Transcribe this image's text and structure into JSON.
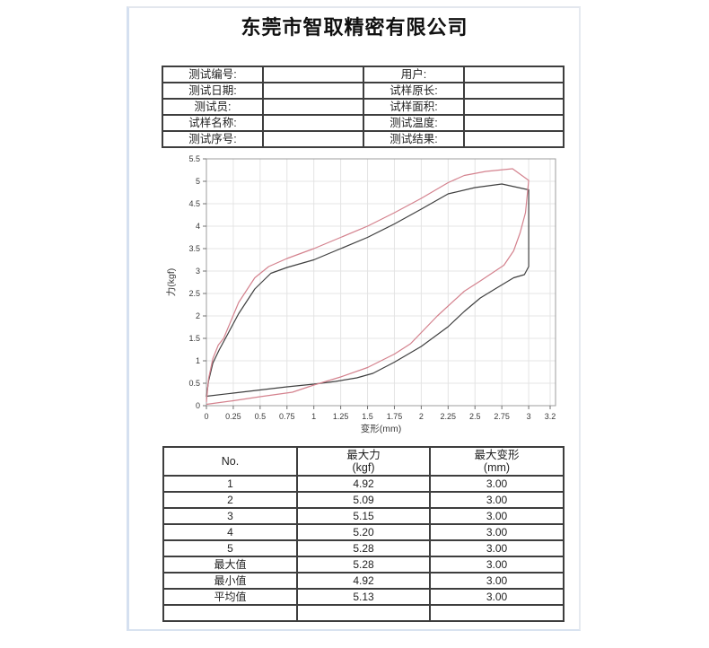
{
  "title": "东莞市智取精密有限公司",
  "info_form": {
    "rows": [
      {
        "l1": "测试编号:",
        "v1": "",
        "l2": "用户:",
        "v2": ""
      },
      {
        "l1": "测试日期:",
        "v1": "",
        "l2": "试样原长:",
        "v2": ""
      },
      {
        "l1": "测试员:",
        "v1": "",
        "l2": "试样面积:",
        "v2": ""
      },
      {
        "l1": "试样名称:",
        "v1": "",
        "l2": "测试温度:",
        "v2": ""
      },
      {
        "l1": "测试序号:",
        "v1": "",
        "l2": "测试结果:",
        "v2": ""
      }
    ]
  },
  "chart_data": {
    "type": "line",
    "title": "",
    "xlabel": "变形(mm)",
    "ylabel": "力(kgf)",
    "xlim": [
      0,
      3.25
    ],
    "ylim": [
      0,
      5.5
    ],
    "grid": true,
    "legend_position": "none",
    "x_ticks": [
      {
        "v": 0,
        "label": "0"
      },
      {
        "v": 0.25,
        "label": "0.25"
      },
      {
        "v": 0.5,
        "label": "0.5"
      },
      {
        "v": 0.75,
        "label": "0.75"
      },
      {
        "v": 1,
        "label": "1"
      },
      {
        "v": 1.25,
        "label": "1.25"
      },
      {
        "v": 1.5,
        "label": "1.5"
      },
      {
        "v": 1.75,
        "label": "1.75"
      },
      {
        "v": 2,
        "label": "2"
      },
      {
        "v": 2.25,
        "label": "2.25"
      },
      {
        "v": 2.5,
        "label": "2.5"
      },
      {
        "v": 2.75,
        "label": "2.75"
      },
      {
        "v": 3,
        "label": "3"
      },
      {
        "v": 3.2,
        "label": "3.2"
      }
    ],
    "y_ticks": [
      {
        "v": 0,
        "label": "0"
      },
      {
        "v": 0.5,
        "label": "0.5"
      },
      {
        "v": 1,
        "label": "1"
      },
      {
        "v": 1.5,
        "label": "1.5"
      },
      {
        "v": 2,
        "label": "2"
      },
      {
        "v": 2.5,
        "label": "2.5"
      },
      {
        "v": 3,
        "label": "3"
      },
      {
        "v": 3.5,
        "label": "3.5"
      },
      {
        "v": 4,
        "label": "4"
      },
      {
        "v": 4.5,
        "label": "4.5"
      },
      {
        "v": 5,
        "label": "5"
      },
      {
        "v": 5.5,
        "label": "5.5"
      }
    ],
    "styles": {
      "grid_color": "#e4e4e4",
      "frame_color": "#9c9c9c",
      "tick_color": "#707070",
      "label_color": "#3a3a3a"
    },
    "series": [
      {
        "name": "hysteresis-loop-dark",
        "color": "#3f3f3f",
        "points": [
          [
            0,
            0.2
          ],
          [
            0.02,
            0.55
          ],
          [
            0.06,
            0.95
          ],
          [
            0.12,
            1.25
          ],
          [
            0.2,
            1.6
          ],
          [
            0.3,
            2.05
          ],
          [
            0.45,
            2.6
          ],
          [
            0.6,
            2.95
          ],
          [
            0.75,
            3.08
          ],
          [
            1.0,
            3.25
          ],
          [
            1.25,
            3.5
          ],
          [
            1.5,
            3.75
          ],
          [
            1.75,
            4.05
          ],
          [
            2.0,
            4.38
          ],
          [
            2.25,
            4.72
          ],
          [
            2.5,
            4.86
          ],
          [
            2.75,
            4.94
          ],
          [
            3.0,
            4.81
          ],
          [
            3.0,
            3.1
          ],
          [
            2.96,
            2.92
          ],
          [
            2.86,
            2.85
          ],
          [
            2.7,
            2.62
          ],
          [
            2.55,
            2.4
          ],
          [
            2.4,
            2.1
          ],
          [
            2.25,
            1.76
          ],
          [
            2.0,
            1.32
          ],
          [
            1.75,
            0.97
          ],
          [
            1.55,
            0.72
          ],
          [
            1.4,
            0.62
          ],
          [
            1.2,
            0.54
          ],
          [
            1.0,
            0.48
          ],
          [
            0.75,
            0.42
          ],
          [
            0.5,
            0.35
          ],
          [
            0.25,
            0.28
          ],
          [
            0,
            0.21
          ]
        ]
      },
      {
        "name": "hysteresis-loop-red",
        "color": "#d4828e",
        "points": [
          [
            0,
            0.08
          ],
          [
            0.02,
            0.6
          ],
          [
            0.06,
            1.05
          ],
          [
            0.11,
            1.35
          ],
          [
            0.16,
            1.5
          ],
          [
            0.3,
            2.3
          ],
          [
            0.45,
            2.85
          ],
          [
            0.58,
            3.1
          ],
          [
            0.75,
            3.28
          ],
          [
            1.0,
            3.5
          ],
          [
            1.25,
            3.75
          ],
          [
            1.5,
            4.0
          ],
          [
            1.75,
            4.3
          ],
          [
            2.0,
            4.62
          ],
          [
            2.25,
            4.97
          ],
          [
            2.4,
            5.13
          ],
          [
            2.6,
            5.22
          ],
          [
            2.85,
            5.28
          ],
          [
            3.0,
            5.02
          ],
          [
            2.97,
            4.3
          ],
          [
            2.92,
            3.85
          ],
          [
            2.86,
            3.45
          ],
          [
            2.77,
            3.13
          ],
          [
            2.55,
            2.78
          ],
          [
            2.4,
            2.55
          ],
          [
            2.15,
            2.0
          ],
          [
            1.9,
            1.38
          ],
          [
            1.75,
            1.15
          ],
          [
            1.5,
            0.85
          ],
          [
            1.25,
            0.64
          ],
          [
            1.0,
            0.46
          ],
          [
            0.8,
            0.3
          ],
          [
            0.5,
            0.2
          ],
          [
            0.25,
            0.11
          ],
          [
            0,
            0.03
          ]
        ]
      }
    ]
  },
  "results_table": {
    "headers": [
      {
        "line1": "No.",
        "line2": ""
      },
      {
        "line1": "最大力",
        "line2": "(kgf)"
      },
      {
        "line1": "最大变形",
        "line2": "(mm)"
      }
    ],
    "rows": [
      [
        "1",
        "4.92",
        "3.00"
      ],
      [
        "2",
        "5.09",
        "3.00"
      ],
      [
        "3",
        "5.15",
        "3.00"
      ],
      [
        "4",
        "5.20",
        "3.00"
      ],
      [
        "5",
        "5.28",
        "3.00"
      ],
      [
        "最大值",
        "5.28",
        "3.00"
      ],
      [
        "最小值",
        "4.92",
        "3.00"
      ],
      [
        "平均值",
        "5.13",
        "3.00"
      ],
      [
        "",
        "",
        ""
      ]
    ]
  }
}
